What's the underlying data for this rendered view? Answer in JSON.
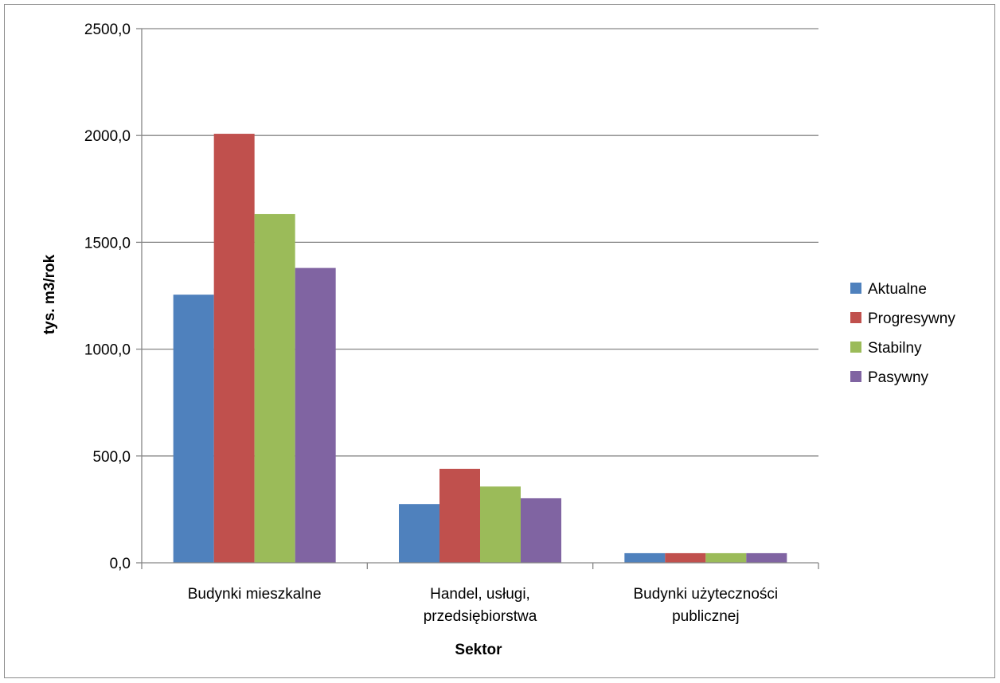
{
  "chart_data": {
    "type": "bar",
    "categories": [
      [
        "Budynki mieszkalne"
      ],
      [
        "Handel, usługi,",
        "przedsiębiorstwa"
      ],
      [
        "Budynki użyteczności",
        "publicznej"
      ]
    ],
    "series": [
      {
        "name": "Aktualne",
        "color": "#4f81bd",
        "values": [
          1255,
          275,
          45
        ]
      },
      {
        "name": "Progresywny",
        "color": "#c0504d",
        "values": [
          2008,
          440,
          45
        ]
      },
      {
        "name": "Stabilny",
        "color": "#9bbb59",
        "values": [
          1632,
          357,
          45
        ]
      },
      {
        "name": "Pasywny",
        "color": "#8064a2",
        "values": [
          1380,
          302,
          45
        ]
      }
    ],
    "title": "",
    "xlabel": "Sektor",
    "ylabel": "tys. m3/rok",
    "ylim": [
      0,
      2500
    ],
    "yticks": [
      0,
      500,
      1000,
      1500,
      2000,
      2500
    ],
    "ytick_labels": [
      "0,0",
      "500,0",
      "1000,0",
      "1500,0",
      "2000,0",
      "2500,0"
    ],
    "grid": true,
    "legend_position": "right",
    "grid_color": "#868686"
  }
}
